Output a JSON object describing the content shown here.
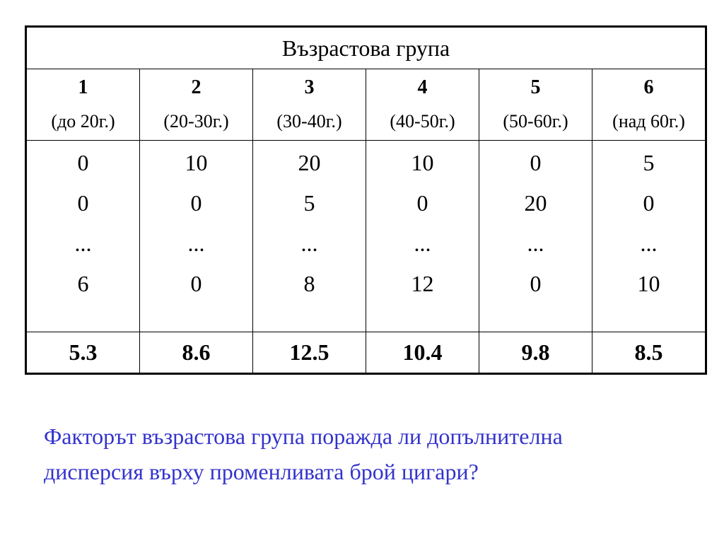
{
  "table": {
    "title": "Възрастова група",
    "groups": [
      {
        "num": "1",
        "range": "(до 20г.)",
        "values": [
          "0",
          "0",
          "...",
          "6"
        ],
        "mean": "5.3"
      },
      {
        "num": "2",
        "range": "(20-30г.)",
        "values": [
          "10",
          "0",
          "...",
          "0"
        ],
        "mean": "8.6"
      },
      {
        "num": "3",
        "range": "(30-40г.)",
        "values": [
          "20",
          "5",
          "...",
          "8"
        ],
        "mean": "12.5"
      },
      {
        "num": "4",
        "range": "(40-50г.)",
        "values": [
          "10",
          "0",
          "...",
          "12"
        ],
        "mean": "10.4"
      },
      {
        "num": "5",
        "range": "(50-60г.)",
        "values": [
          "0",
          "20",
          "...",
          "0"
        ],
        "mean": "9.8"
      },
      {
        "num": "6",
        "range": "(над 60г.)",
        "values": [
          "5",
          "0",
          "...",
          "10"
        ],
        "mean": "8.5"
      }
    ]
  },
  "question": {
    "line1": "Факторът възрастова група поражда ли допълнителна",
    "line2": "дисперсия върху променливата брой цигари?"
  },
  "colors": {
    "question_text": "#3333cc",
    "border": "#000000"
  }
}
